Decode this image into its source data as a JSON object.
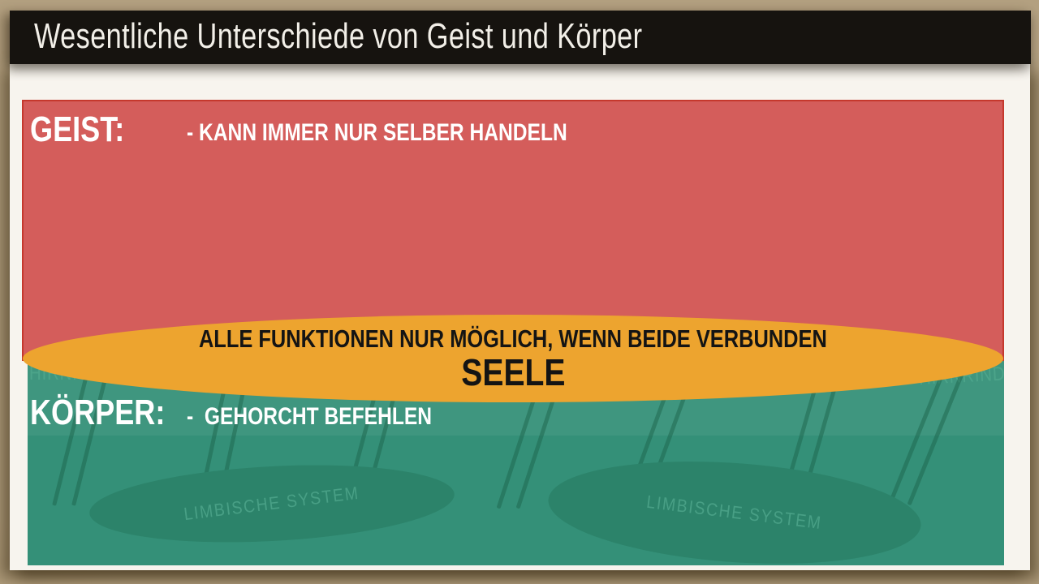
{
  "header": {
    "title": "Wesentliche Unterschiede von Geist und Körper"
  },
  "geist": {
    "label": "GEIST:",
    "point": "- KANN IMMER NUR SELBER HANDELN"
  },
  "koerper": {
    "label": "KÖRPER:",
    "point": "-  GEHORCHT BEFEHLEN"
  },
  "seele": {
    "line1": "ALLE FUNKTIONEN NUR MÖGLICH, WENN BEIDE VERBUNDEN",
    "line2": "SEELE"
  },
  "diagram": {
    "hirnrinde_left": "HIRNRINDE",
    "hirnrinde_right": "HIRNRINDE",
    "limbisch_left": "LIMBISCHE SYSTEM",
    "limbisch_right": "LIMBISCHE SYSTEM"
  },
  "colors": {
    "desk": "#b3a080",
    "ink": "#16130f",
    "paper": "#f7f4ee",
    "title_text": "#f2efe8",
    "red": "#d45d5b",
    "red_border": "#c5382d",
    "green": "#349078",
    "green_dark": "#2c836a",
    "green_text": "#4fa78c",
    "orange": "#eda42f",
    "white": "#ffffff",
    "black_text": "#141414"
  }
}
